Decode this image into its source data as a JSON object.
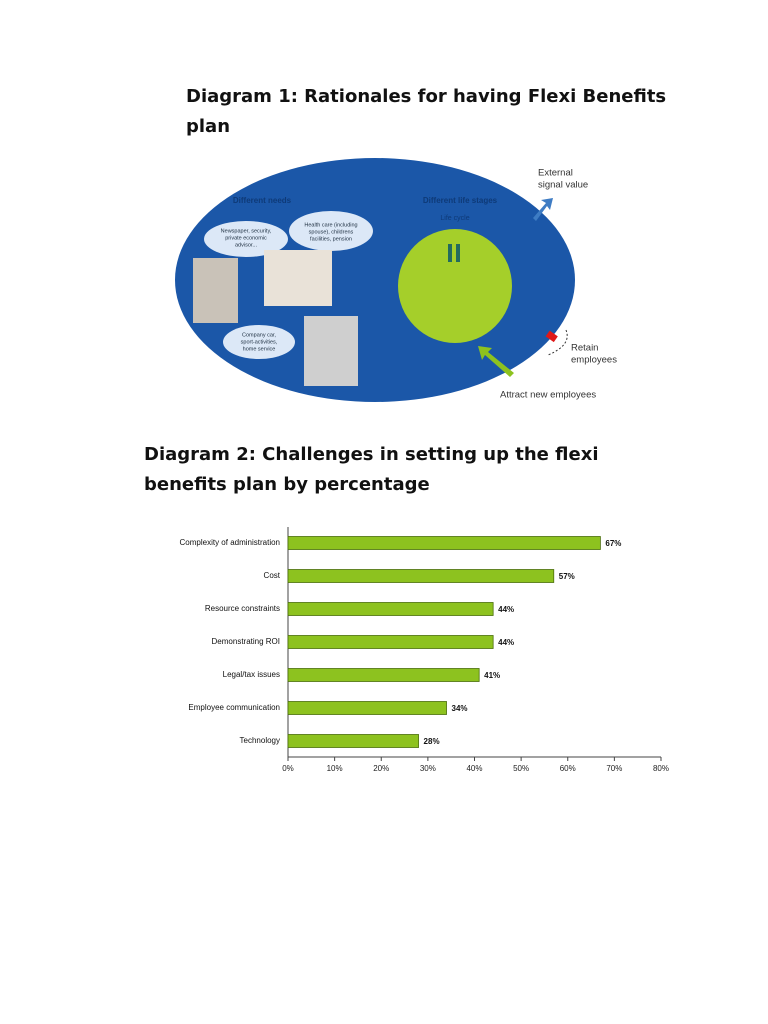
{
  "heading_1": "Diagram 1: Rationales for having Flexi Benefits plan",
  "diagram_1": {
    "needs_label": "Different needs",
    "stages_label": "Different life stages",
    "cycle_label": "Life cycle",
    "cloud_1": [
      "Newspaper, security,",
      "private economic",
      "advisor..."
    ],
    "cloud_2": [
      "Health care (including",
      "spouse), childrens",
      "facilities, pension"
    ],
    "cloud_3": [
      "Company car,",
      "sport-activities,",
      "home service"
    ],
    "external_signal": [
      "External",
      "signal value"
    ],
    "retain": [
      "Retain",
      "employees"
    ],
    "attract": "Attract new employees"
  },
  "heading_2": "Diagram 2: Challenges in setting up the flexi benefits plan by percentage",
  "chart_data": {
    "type": "bar",
    "orientation": "horizontal",
    "categories": [
      "Complexity of administration",
      "Cost",
      "Resource constraints",
      "Demonstrating ROI",
      "Legal/tax issues",
      "Employee communication",
      "Technology"
    ],
    "values": [
      67,
      57,
      44,
      44,
      41,
      34,
      28
    ],
    "value_labels": [
      "67%",
      "57%",
      "44%",
      "44%",
      "41%",
      "34%",
      "28%"
    ],
    "color": "#8dc21f",
    "xlim": [
      0,
      80
    ],
    "xticks": [
      {
        "value": 0,
        "label": "0%"
      },
      {
        "value": 10,
        "label": "10%"
      },
      {
        "value": 20,
        "label": "20%"
      },
      {
        "value": 30,
        "label": "30%"
      },
      {
        "value": 40,
        "label": "40%"
      },
      {
        "value": 50,
        "label": "50%"
      },
      {
        "value": 60,
        "label": "60%"
      },
      {
        "value": 70,
        "label": "70%"
      },
      {
        "value": 80,
        "label": "80%"
      }
    ]
  }
}
